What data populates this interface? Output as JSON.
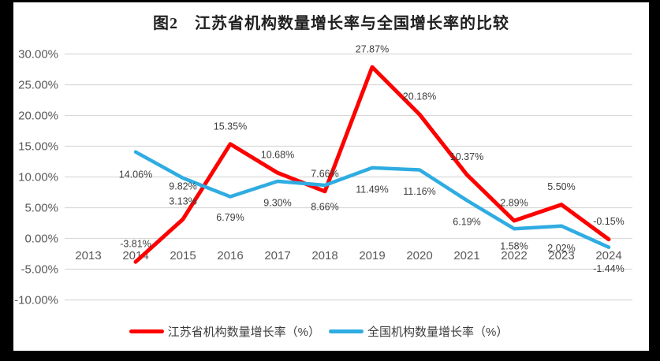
{
  "figure": {
    "title": "图2　江苏省机构数量增长率与全国增长率的比较"
  },
  "colors": {
    "jiangsu_red": "#fe0000",
    "national_blue": "#2face1",
    "gridline": "#d9d9d9",
    "axis_text": "#595959",
    "data_label_text": "#3d3d3d",
    "frame_black": "#000000",
    "background": "#ffffff"
  },
  "chart_data": {
    "type": "line",
    "title": "图2　江苏省机构数量增长率与全国增长率的比较",
    "categories": [
      "2013",
      "2014",
      "2015",
      "2016",
      "2017",
      "2018",
      "2019",
      "2020",
      "2021",
      "2022",
      "2023",
      "2024"
    ],
    "xlabel": "",
    "ylabel": "",
    "ylim": [
      -10,
      30
    ],
    "y_tick_step": 5,
    "y_ticks": [
      "30.00%",
      "25.00%",
      "20.00%",
      "15.00%",
      "10.00%",
      "5.00%",
      "0.00%",
      "-5.00%",
      "-10.00%"
    ],
    "grid": true,
    "legend_position": "bottom",
    "series": [
      {
        "name": "江苏省机构数量增长率（%）",
        "color_key": "jiangsu_red",
        "values": [
          null,
          -3.81,
          3.13,
          15.35,
          10.68,
          7.66,
          27.87,
          20.18,
          10.37,
          2.89,
          5.5,
          -0.15
        ],
        "labels": [
          null,
          "-3.81%",
          "3.13%",
          "15.35%",
          "10.68%",
          "7.66%",
          "27.87%",
          "20.18%",
          "10.37%",
          "2.89%",
          "5.50%",
          "-0.15%"
        ]
      },
      {
        "name": "全国机构数量增长率（%）",
        "color_key": "national_blue",
        "values": [
          null,
          14.06,
          9.82,
          6.79,
          9.3,
          8.66,
          11.49,
          11.16,
          6.19,
          1.58,
          2.02,
          -1.44
        ],
        "labels": [
          null,
          "14.06%",
          "9.82%",
          "6.79%",
          "9.30%",
          "8.66%",
          "11.49%",
          "11.16%",
          "6.19%",
          "1.58%",
          "2.02%",
          "-1.44%"
        ]
      }
    ]
  }
}
